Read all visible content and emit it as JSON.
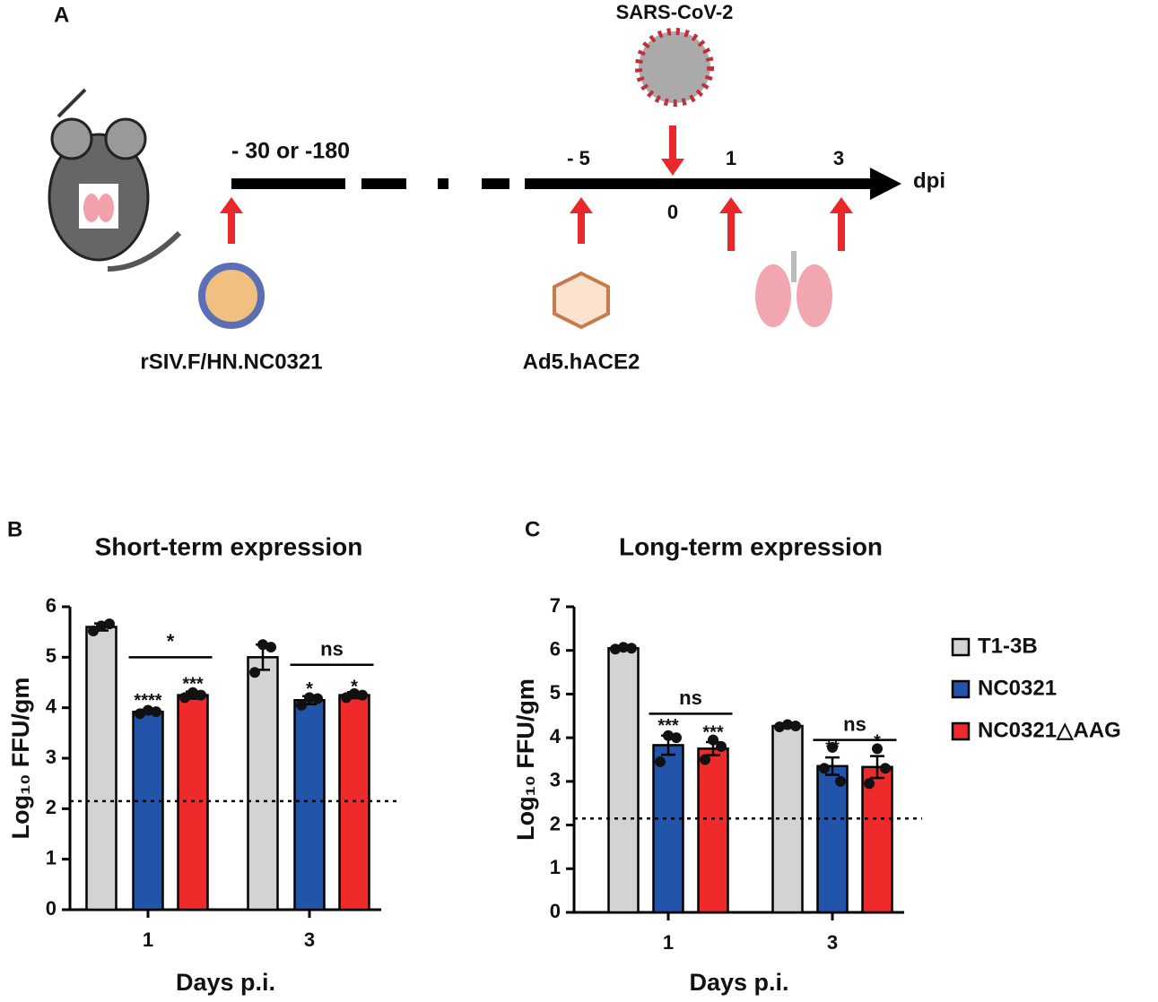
{
  "diagram": {
    "panel_label": "A",
    "virus_label": "SARS-CoV-2",
    "start_label": "- 30 or -180",
    "day_minus5": "- 5",
    "day0": "0",
    "day1": "1",
    "day3": "3",
    "unit": "dpi",
    "vaccine_label": "rSIV.F/HN.NC0321",
    "vector_label": "Ad5.hACE2"
  },
  "chart_data": [
    {
      "type": "bar",
      "panel_label": "B",
      "title": "Short-term expression",
      "x_label": "Days p.i.",
      "y_label": "Log₁₀ FFU/gm",
      "categories": [
        "1",
        "3"
      ],
      "series": [
        {
          "color": "#d3d3d3",
          "values": [
            5.6,
            5.0
          ],
          "errors": [
            0.07,
            0.25
          ],
          "points": [
            [
              5.52,
              5.62,
              5.66
            ],
            [
              4.7,
              5.25,
              5.2
            ]
          ]
        },
        {
          "color": "#2255aa",
          "values": [
            3.92,
            4.15
          ],
          "errors": [
            0.04,
            0.08
          ],
          "points": [
            [
              3.88,
              3.95,
              3.92
            ],
            [
              4.05,
              4.2,
              4.18
            ]
          ]
        },
        {
          "color": "#ee2a2a",
          "values": [
            4.25,
            4.25
          ],
          "errors": [
            0.07,
            0.06
          ],
          "points": [
            [
              4.2,
              4.3,
              4.25
            ],
            [
              4.2,
              4.28,
              4.25
            ]
          ]
        }
      ],
      "threshold": 2.15,
      "annotations": [
        "****",
        "***",
        "*",
        "*",
        "*",
        "ns"
      ],
      "ylim": [
        0,
        6
      ],
      "yticks": [
        0,
        1,
        2,
        3,
        4,
        5,
        6
      ]
    },
    {
      "type": "bar",
      "panel_label": "C",
      "title": "Long-term expression",
      "x_label": "Days p.i.",
      "y_label": "Log₁₀ FFU/gm",
      "categories": [
        "1",
        "3"
      ],
      "series": [
        {
          "name": "T1-3B",
          "color": "#d3d3d3",
          "values": [
            6.05,
            4.27
          ],
          "errors": [
            0.03,
            0.03
          ],
          "points": [
            [
              6.03,
              6.07,
              6.05
            ],
            [
              4.25,
              4.3,
              4.27
            ]
          ]
        },
        {
          "name": "NC0321",
          "color": "#2255aa",
          "values": [
            3.83,
            3.35
          ],
          "errors": [
            0.22,
            0.2
          ],
          "points": [
            [
              3.45,
              4.05,
              4.0
            ],
            [
              3.3,
              3.78,
              3.0
            ]
          ]
        },
        {
          "name": "NC0321△AAG",
          "color": "#ee2a2a",
          "values": [
            3.75,
            3.33
          ],
          "errors": [
            0.15,
            0.25
          ],
          "points": [
            [
              3.5,
              3.95,
              3.8
            ],
            [
              2.95,
              3.75,
              3.3
            ]
          ]
        }
      ],
      "threshold": 2.15,
      "annotations": [
        "***",
        "***",
        "ns",
        "**",
        "*",
        "ns"
      ],
      "ylim": [
        0,
        7
      ],
      "yticks": [
        0,
        1,
        2,
        3,
        4,
        5,
        6,
        7
      ],
      "legend": "right"
    }
  ]
}
